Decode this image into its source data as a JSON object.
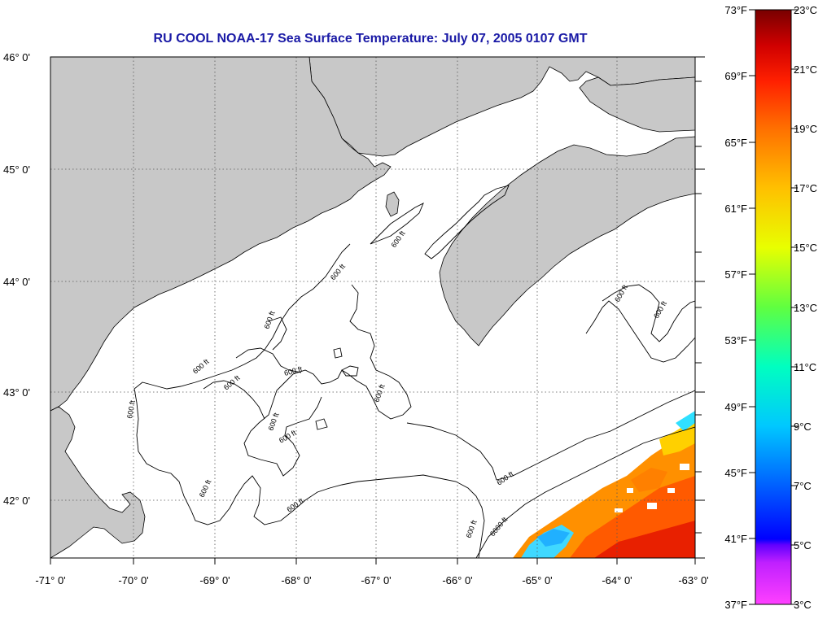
{
  "title": "RU COOL  NOAA-17  Sea Surface Temperature:  July 07, 2005 0107 GMT",
  "map": {
    "lon_labels": [
      "-71° 0'",
      "-70° 0'",
      "-69° 0'",
      "-68° 0'",
      "-67° 0'",
      "-66° 0'",
      "-65° 0'",
      "-64° 0'",
      "-63° 0'"
    ],
    "lat_labels": [
      "46° 0'",
      "45° 0'",
      "44° 0'",
      "43° 0'",
      "42° 0'"
    ],
    "contour_labels": [
      "600 ft",
      "600 ft",
      "600 ft",
      "600 ft",
      "600 ft",
      "600 ft",
      "600 ft",
      "600 ft",
      "600 ft",
      "600 ft",
      "600 ft",
      "600 ft",
      "600 ft",
      "600 ft",
      "600 ft",
      "6000 ft"
    ],
    "colors": {
      "land": "#c8c8c8",
      "water": "#ffffff",
      "grid": "#555555",
      "title": "#1a1aa6"
    }
  },
  "colorbar": {
    "fahrenheit_labels": [
      "73°F",
      "69°F",
      "65°F",
      "61°F",
      "57°F",
      "53°F",
      "49°F",
      "45°F",
      "41°F",
      "37°F"
    ],
    "celsius_labels": [
      "23°C",
      "21°C",
      "19°C",
      "17°C",
      "15°C",
      "13°C",
      "11°C",
      "9°C",
      "7°C",
      "5°C",
      "3°C"
    ],
    "colors": [
      "#ff40ff",
      "#8000ff",
      "#0000ff",
      "#0080ff",
      "#00ffff",
      "#00ff80",
      "#80ff00",
      "#ffff00",
      "#ffa000",
      "#ff4000",
      "#ff0000",
      "#b00000",
      "#800000"
    ]
  }
}
